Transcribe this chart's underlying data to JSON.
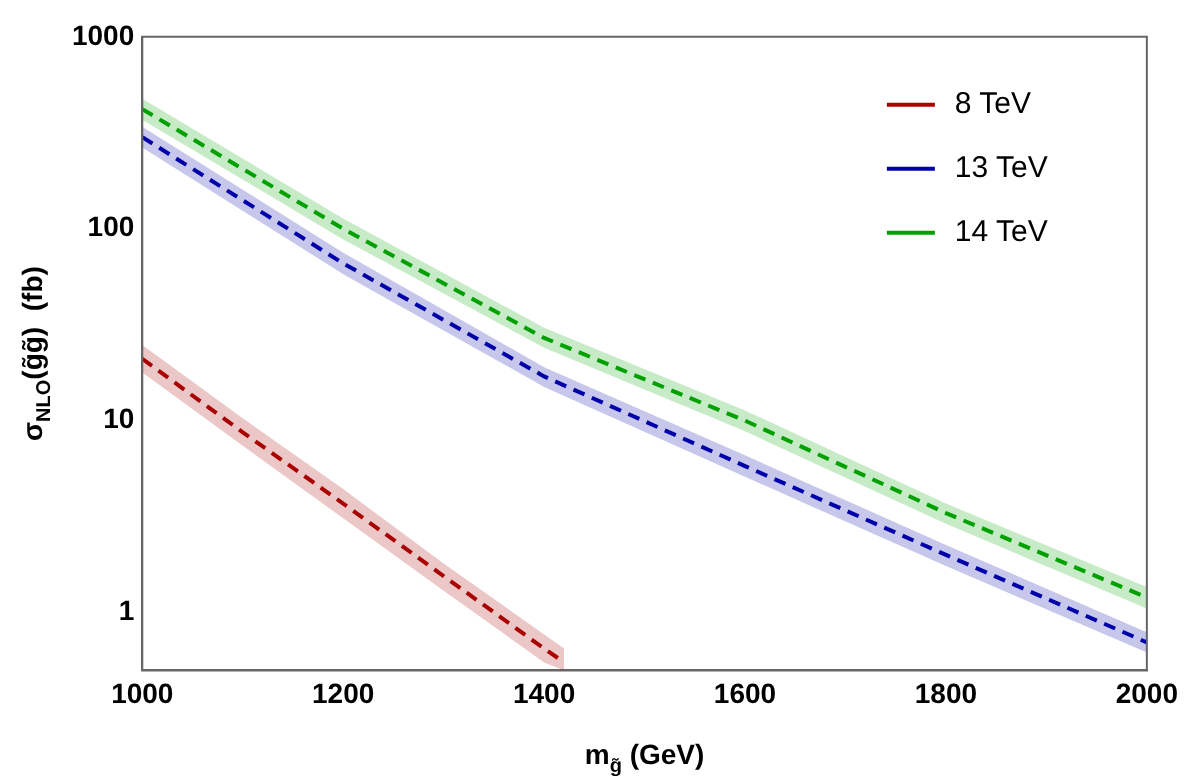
{
  "chart_data": {
    "type": "line",
    "xlabel": "m$_{g̃}$ (GeV)",
    "ylabel": "σ$_{NLO}$(g̃g̃)  (fb)",
    "xlim": [
      1000,
      2000
    ],
    "xticks": [
      1000,
      1200,
      1400,
      1600,
      1800,
      2000
    ],
    "ylim": [
      0.5,
      1000
    ],
    "yticks": [
      1,
      10,
      100,
      1000
    ],
    "log": "y",
    "grid": false,
    "legend": "top right",
    "line_style": "dashed",
    "marker": "none",
    "series": [
      {
        "name": "8 TeV",
        "color": "#aa0000",
        "x": [
          1000,
          1100,
          1200,
          1300,
          1400,
          1420
        ],
        "values": [
          21,
          8.7,
          3.7,
          1.55,
          0.65,
          0.55
        ],
        "lower": [
          17.8,
          7.4,
          3.1,
          1.3,
          0.55,
          0.5
        ],
        "upper": [
          24.8,
          10.3,
          4.4,
          1.8,
          0.77,
          0.65
        ]
      },
      {
        "name": "13 TeV",
        "color": "#0000aa",
        "x": [
          1000,
          1200,
          1400,
          1600,
          1800,
          2000
        ],
        "values": [
          300,
          66,
          17,
          5.8,
          2.0,
          0.7
        ],
        "lower": [
          265,
          58,
          15,
          5.1,
          1.75,
          0.62
        ],
        "upper": [
          340,
          75,
          19,
          6.6,
          2.25,
          0.79
        ]
      },
      {
        "name": "14 TeV",
        "color": "#00a000",
        "x": [
          1000,
          1200,
          1400,
          1600,
          1800,
          2000
        ],
        "values": [
          420,
          100,
          27,
          10,
          3.3,
          1.2
        ],
        "lower": [
          370,
          88,
          24,
          8.8,
          2.9,
          1.05
        ],
        "upper": [
          475,
          113,
          30.5,
          11.3,
          3.7,
          1.36
        ]
      }
    ]
  }
}
